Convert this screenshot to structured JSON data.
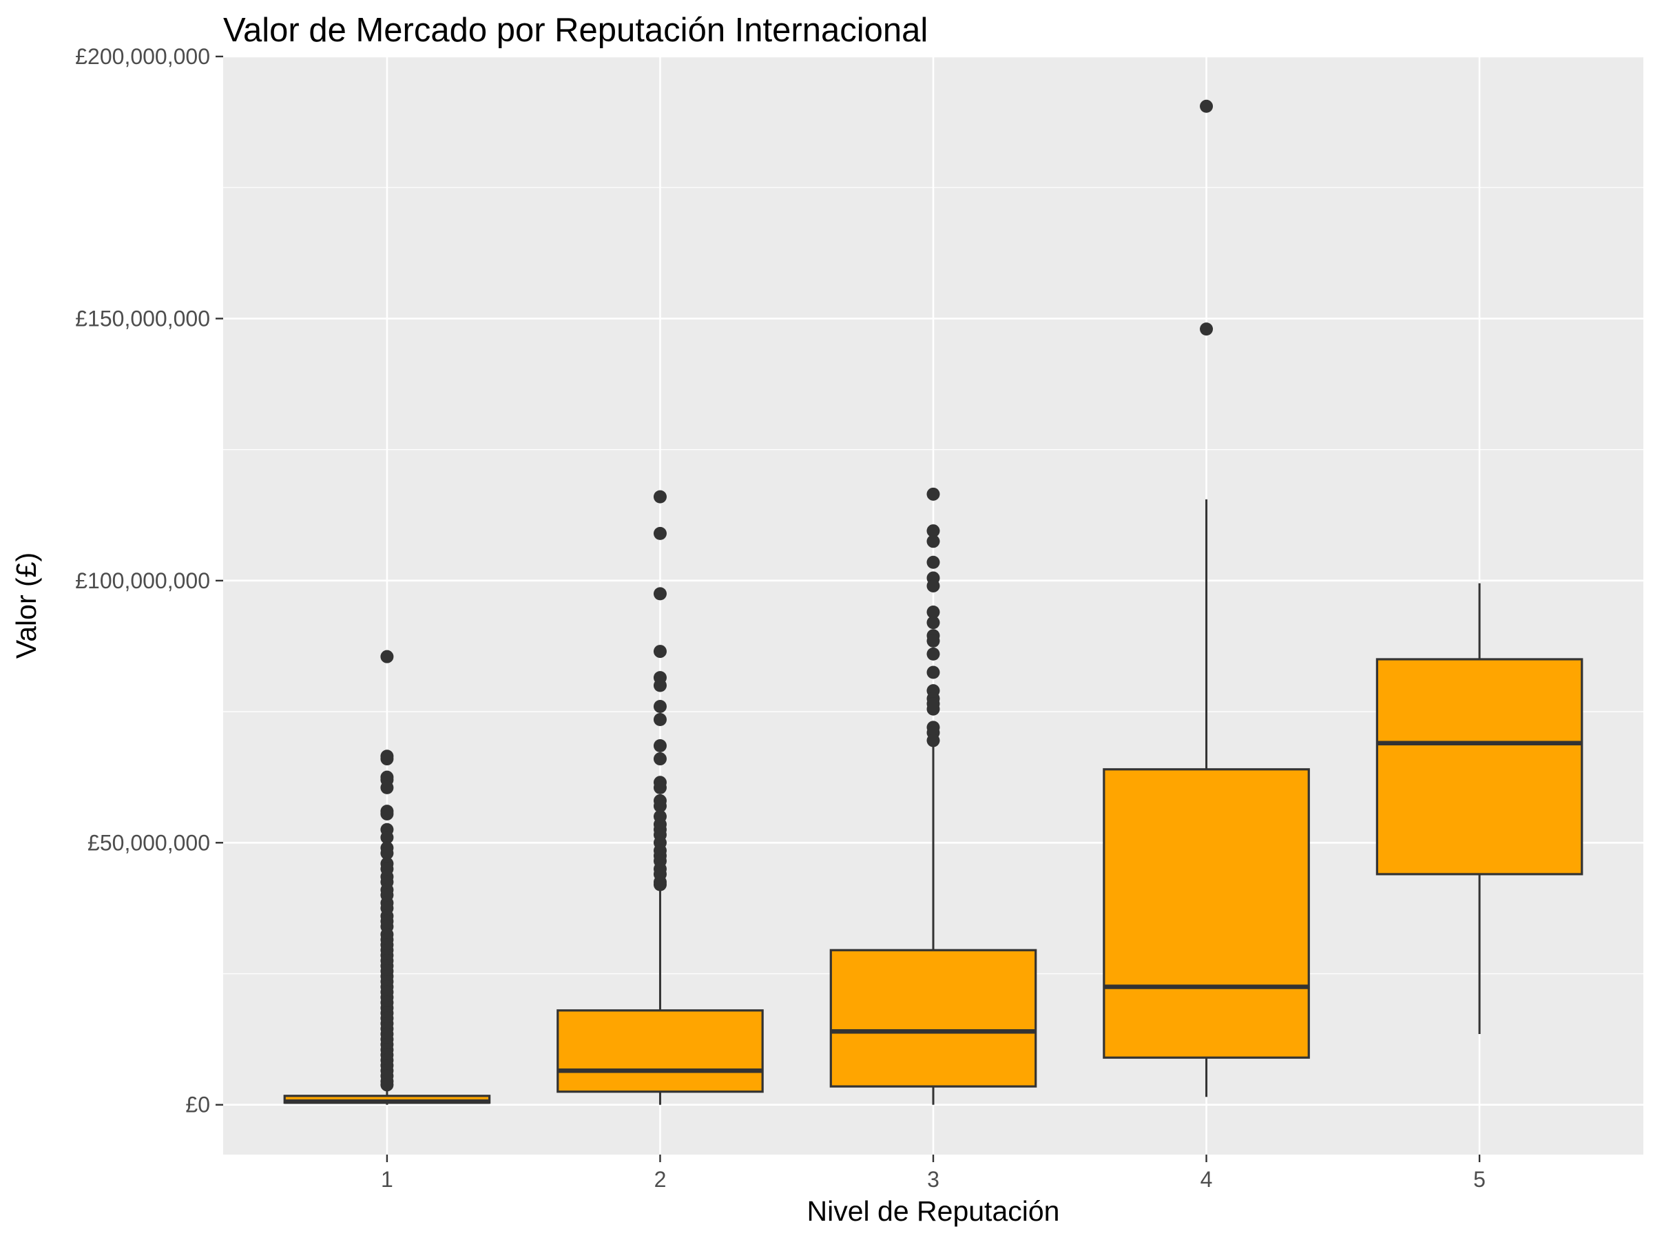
{
  "chart_data": {
    "type": "boxplot",
    "title": "Valor de Mercado por Reputación Internacional",
    "xlabel": "Nivel de Reputación",
    "ylabel": "Valor (£)",
    "ylim": [
      -9500000,
      200000000
    ],
    "y_ticks": [
      0,
      50000000,
      100000000,
      150000000,
      200000000
    ],
    "y_tick_labels": [
      "£0",
      "£50,000,000",
      "£100,000,000",
      "£150,000,000",
      "£200,000,000"
    ],
    "categories": [
      "1",
      "2",
      "3",
      "4",
      "5"
    ],
    "grid": true,
    "colors": {
      "panel": "#ebebeb",
      "grid": "#ffffff",
      "box_fill": "#ffa500",
      "box_line": "#333333",
      "point": "#333333",
      "tick": "#333333",
      "tick_label": "#4d4d4d"
    },
    "boxes": [
      {
        "category": "1",
        "q1": 400000,
        "median": 600000,
        "q3": 1700000,
        "whisker_low": 0,
        "whisker_high": 3300000,
        "outliers": [
          85500000,
          66500000,
          66000000,
          62500000,
          62000000,
          60500000,
          56000000,
          55500000,
          52500000,
          51000000,
          49000000,
          48000000,
          46000000,
          45000000,
          43500000,
          42500000,
          41000000,
          40000000,
          38500000,
          37500000,
          36000000,
          35000000,
          34000000,
          32500000,
          31500000,
          30500000,
          29500000,
          28500000,
          27500000,
          26500000,
          25500000,
          24500000,
          23500000,
          22500000,
          21500000,
          20500000,
          19500000,
          18500000,
          17500000,
          16500000,
          15500000,
          14500000,
          13500000,
          12500000,
          11500000,
          10500000,
          9500000,
          8500000,
          7500000,
          6500000,
          5500000,
          4500000,
          3800000
        ]
      },
      {
        "category": "2",
        "q1": 2500000,
        "median": 6500000,
        "q3": 18000000,
        "whisker_low": 0,
        "whisker_high": 41500000,
        "outliers": [
          116000000,
          109000000,
          97500000,
          86500000,
          81500000,
          80000000,
          76000000,
          73500000,
          68500000,
          66000000,
          61500000,
          60500000,
          58000000,
          57000000,
          55000000,
          53500000,
          52500000,
          51500000,
          50000000,
          48500000,
          47500000,
          46500000,
          45000000,
          44000000,
          42500000,
          42000000
        ]
      },
      {
        "category": "3",
        "q1": 3500000,
        "median": 14000000,
        "q3": 29500000,
        "whisker_low": 0,
        "whisker_high": 69000000,
        "outliers": [
          116500000,
          109500000,
          107500000,
          103500000,
          100500000,
          99000000,
          94000000,
          92000000,
          89500000,
          88500000,
          86000000,
          82500000,
          79000000,
          77500000,
          76500000,
          75500000,
          72000000,
          71000000,
          69500000
        ]
      },
      {
        "category": "4",
        "q1": 9000000,
        "median": 22500000,
        "q3": 64000000,
        "whisker_low": 1500000,
        "whisker_high": 115500000,
        "outliers": [
          190500000,
          148000000
        ]
      },
      {
        "category": "5",
        "q1": 44000000,
        "median": 69000000,
        "q3": 85000000,
        "whisker_low": 13500000,
        "whisker_high": 99500000,
        "outliers": []
      }
    ]
  }
}
